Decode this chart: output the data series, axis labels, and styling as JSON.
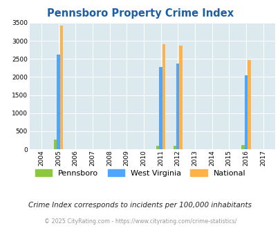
{
  "title": "Pennsboro Property Crime Index",
  "years": [
    2004,
    2005,
    2006,
    2007,
    2008,
    2009,
    2010,
    2011,
    2012,
    2013,
    2014,
    2015,
    2016,
    2017
  ],
  "pennsboro": [
    0,
    265,
    0,
    0,
    0,
    0,
    0,
    100,
    100,
    0,
    0,
    0,
    110,
    0
  ],
  "west_virginia": [
    0,
    2630,
    0,
    0,
    0,
    0,
    0,
    2270,
    2380,
    0,
    0,
    0,
    2050,
    0
  ],
  "national": [
    0,
    3420,
    0,
    0,
    0,
    0,
    0,
    2900,
    2860,
    0,
    0,
    0,
    2470,
    0
  ],
  "pennsboro_color": "#8dc63f",
  "wv_color": "#4da6ff",
  "national_color": "#ffb347",
  "bg_color": "#dce9ee",
  "ylim": [
    0,
    3500
  ],
  "yticks": [
    0,
    500,
    1000,
    1500,
    2000,
    2500,
    3000,
    3500
  ],
  "bar_width": 0.18,
  "legend_labels": [
    "Pennsboro",
    "West Virginia",
    "National"
  ],
  "subtitle": "Crime Index corresponds to incidents per 100,000 inhabitants",
  "footer": "© 2025 CityRating.com - https://www.cityrating.com/crime-statistics/"
}
